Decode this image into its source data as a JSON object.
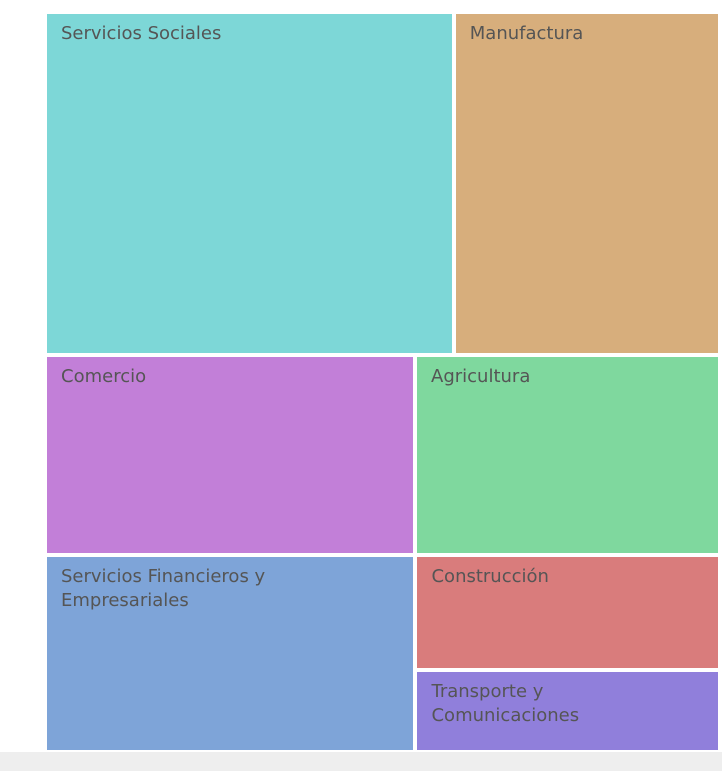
{
  "chart_data": {
    "type": "treemap",
    "categories": [
      "Servicios Sociales",
      "Manufactura",
      "Comercio",
      "Agricultura",
      "Servicios Financieros y Empresariales",
      "Construcción",
      "Transporte y Comunicaciones"
    ],
    "values": [
      28.1,
      18.3,
      14.8,
      12.2,
      14.6,
      7.0,
      5.0
    ],
    "colors": [
      "#7dd7d7",
      "#d7ae7c",
      "#c27fd8",
      "#7fd89e",
      "#7ea4d8",
      "#d97c7c",
      "#907fdb"
    ]
  }
}
